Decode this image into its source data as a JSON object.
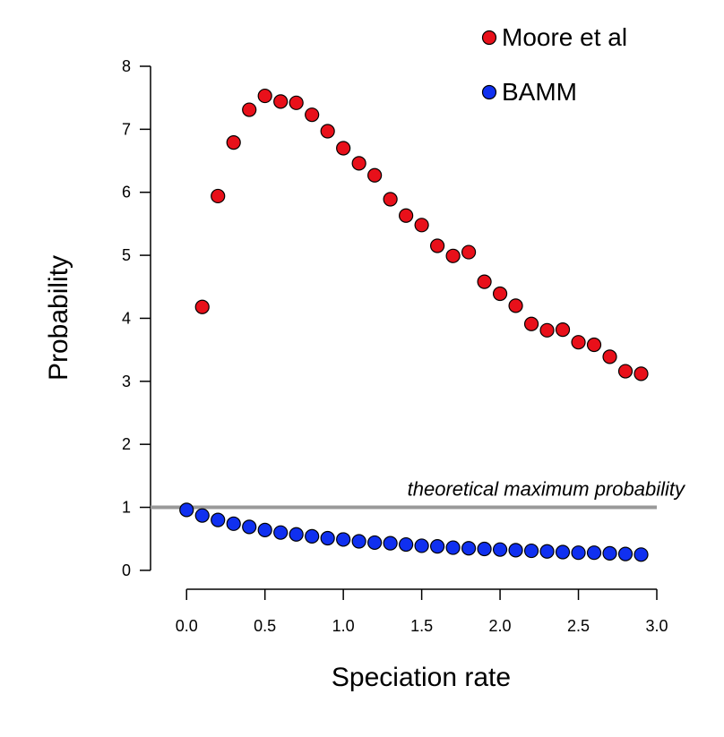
{
  "chart_data": {
    "type": "scatter",
    "xlabel": "Speciation rate",
    "ylabel": "Probability",
    "xlim": [
      -0.23,
      3.0
    ],
    "ylim": [
      -0.3,
      8.0
    ],
    "x_ticks": [
      0.0,
      0.5,
      1.0,
      1.5,
      2.0,
      2.5,
      3.0
    ],
    "x_tick_labels": [
      "0.0",
      "0.5",
      "1.0",
      "1.5",
      "2.0",
      "2.5",
      "3.0"
    ],
    "y_ticks": [
      0,
      1,
      2,
      3,
      4,
      5,
      6,
      7,
      8
    ],
    "y_tick_labels": [
      "0",
      "1",
      "2",
      "3",
      "4",
      "5",
      "6",
      "7",
      "8"
    ],
    "grid": false,
    "legend_position": "top-right",
    "reference_line": {
      "y": 1,
      "label": "theoretical maximum probability",
      "color": "#999999"
    },
    "series": [
      {
        "name": "Moore et al",
        "color": "#e8101a",
        "x": [
          0.1,
          0.2,
          0.3,
          0.4,
          0.5,
          0.6,
          0.7,
          0.8,
          0.9,
          1.0,
          1.1,
          1.2,
          1.3,
          1.4,
          1.5,
          1.6,
          1.7,
          1.8,
          1.9,
          2.0,
          2.1,
          2.2,
          2.3,
          2.4,
          2.5,
          2.6,
          2.7,
          2.8,
          2.9
        ],
        "y": [
          4.18,
          5.94,
          6.79,
          7.31,
          7.53,
          7.44,
          7.42,
          7.23,
          6.97,
          6.7,
          6.46,
          6.27,
          5.89,
          5.63,
          5.48,
          5.15,
          4.99,
          5.05,
          4.58,
          4.39,
          4.2,
          3.91,
          3.81,
          3.82,
          3.62,
          3.58,
          3.39,
          3.16,
          3.12
        ]
      },
      {
        "name": "BAMM",
        "color": "#1030f0",
        "x": [
          0.0,
          0.1,
          0.2,
          0.3,
          0.4,
          0.5,
          0.6,
          0.7,
          0.8,
          0.9,
          1.0,
          1.1,
          1.2,
          1.3,
          1.4,
          1.5,
          1.6,
          1.7,
          1.8,
          1.9,
          2.0,
          2.1,
          2.2,
          2.3,
          2.4,
          2.5,
          2.6,
          2.7,
          2.8,
          2.9
        ],
        "y": [
          0.96,
          0.87,
          0.8,
          0.74,
          0.69,
          0.64,
          0.6,
          0.57,
          0.54,
          0.51,
          0.49,
          0.46,
          0.44,
          0.43,
          0.41,
          0.39,
          0.38,
          0.36,
          0.35,
          0.34,
          0.33,
          0.32,
          0.31,
          0.3,
          0.29,
          0.28,
          0.28,
          0.27,
          0.26,
          0.25
        ]
      }
    ]
  }
}
